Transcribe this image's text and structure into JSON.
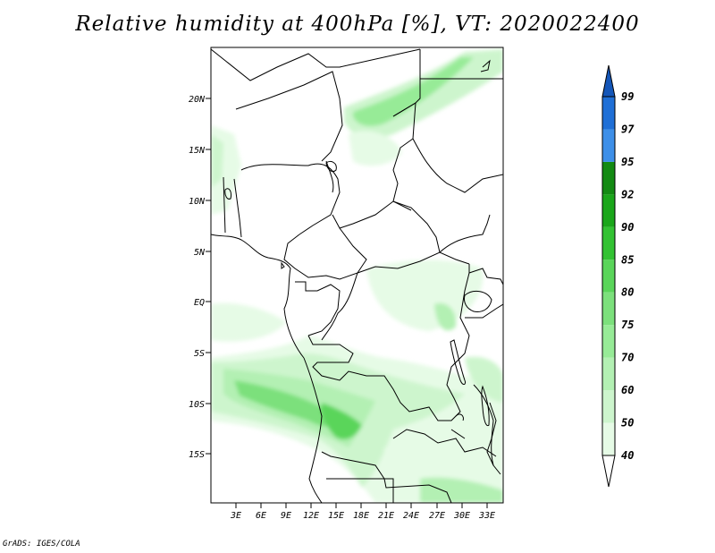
{
  "title": "Relative humidity at 400hPa [%], VT: 2020022400",
  "credit": "GrADS: IGES/COLA",
  "lat_ticks": [
    "20N",
    "15N",
    "10N",
    "5N",
    "EQ",
    "5S",
    "10S",
    "15S"
  ],
  "lon_ticks": [
    "3E",
    "6E",
    "9E",
    "12E",
    "15E",
    "18E",
    "21E",
    "24E",
    "27E",
    "30E",
    "33E"
  ],
  "colorbar": {
    "labels": [
      "40",
      "50",
      "60",
      "70",
      "75",
      "80",
      "85",
      "90",
      "92",
      "95",
      "97",
      "99"
    ],
    "colors": [
      "#ffffff",
      "#e6fbe6",
      "#cdf5cd",
      "#b3f0b3",
      "#97eb97",
      "#7ce07c",
      "#5ad55a",
      "#32c232",
      "#1aa61a",
      "#138a13",
      "#3d8fe8",
      "#1f6fd6",
      "#1456b8"
    ]
  },
  "colors": {
    "land": "#ffffff",
    "border": "#000000",
    "rh_low": "#e6fbe6",
    "rh_mid": "#b3f0b3",
    "rh_high": "#5ad55a"
  }
}
